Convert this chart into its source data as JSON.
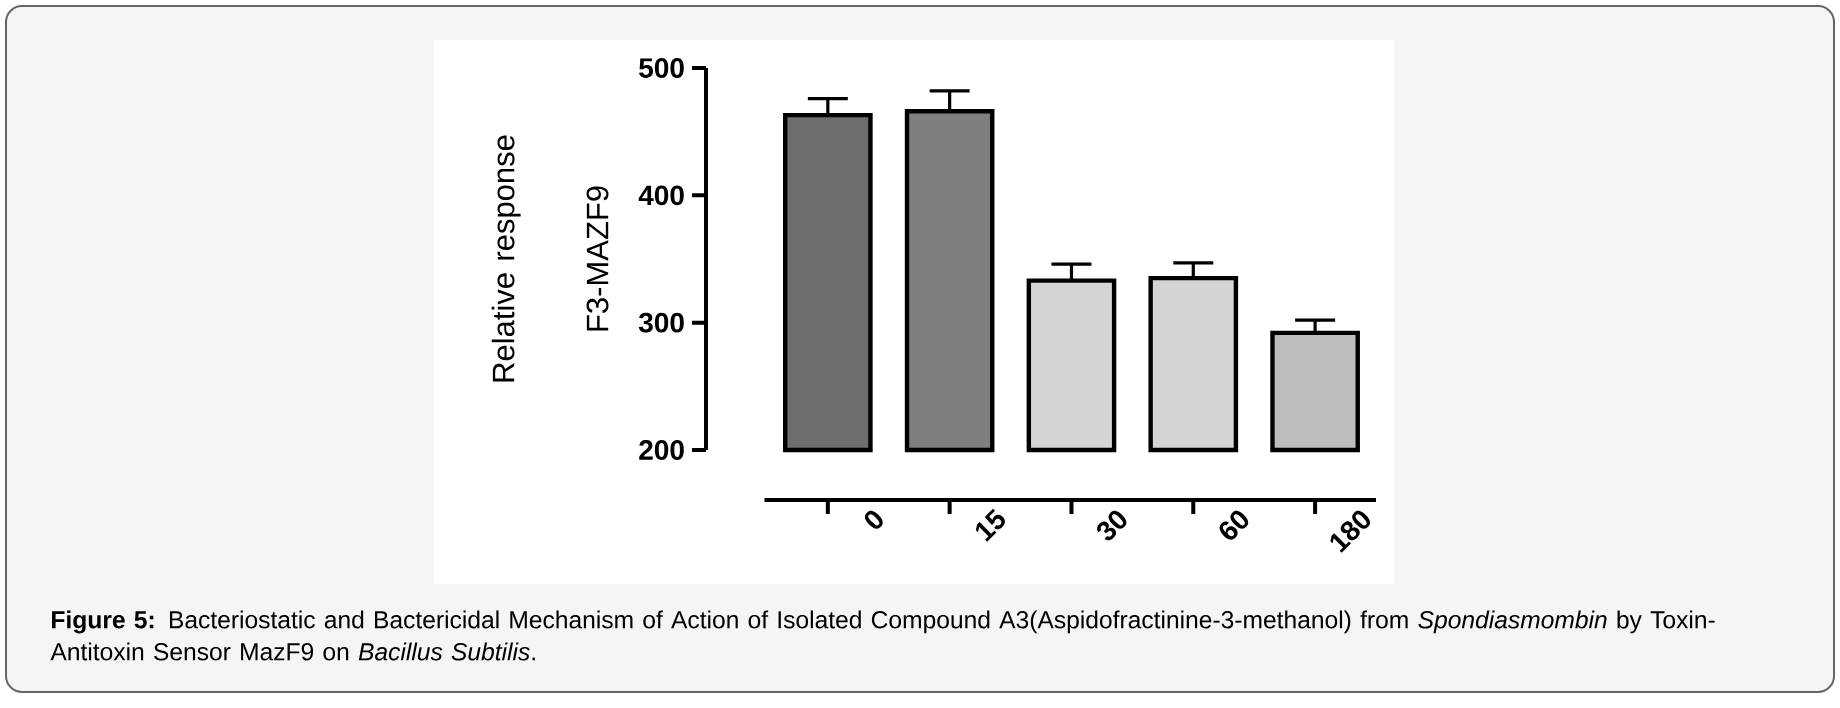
{
  "chart_data": {
    "type": "bar",
    "ylabel": "Relative response F3-MAZF9",
    "categories": [
      "0",
      "15",
      "30",
      "60",
      "180"
    ],
    "values": [
      463,
      466,
      333,
      335,
      292
    ],
    "errors": [
      13,
      16,
      13,
      12,
      10
    ],
    "colors": [
      "#6e6e6e",
      "#7f7f7f",
      "#d4d4d4",
      "#d4d4d4",
      "#bdbdbd"
    ],
    "ylim": [
      200,
      500
    ],
    "yticks": [
      200,
      300,
      400,
      500
    ],
    "annotations": [
      "**Figure 5:** Bacteriostatic and Bactericidal Mechanism of Action of Isolated Compound A3(Aspidofractinine-3-methanol) from *Spondiasmombin* by Toxin-Antitoxin Sensor MazF9 on *Bacillus Subtilis*."
    ]
  }
}
